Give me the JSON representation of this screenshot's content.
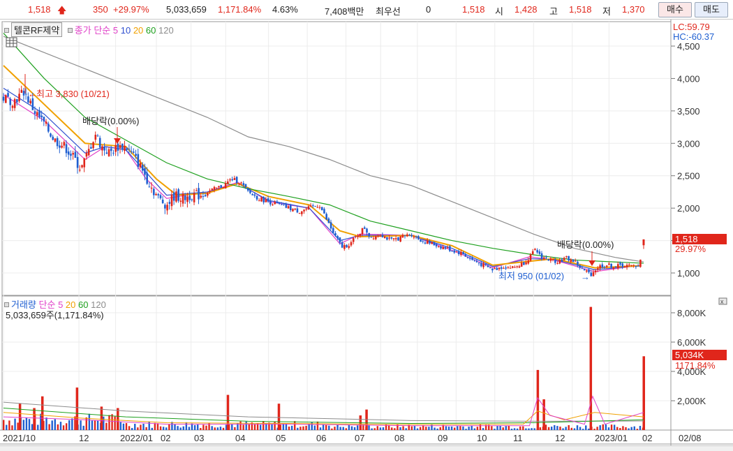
{
  "topbar": {
    "price": "1,518",
    "change": "350",
    "change_pct": "+29.97%",
    "volume": "5,033,659",
    "volume_ratio": "1,171.84%",
    "turnover_pct": "4.63%",
    "amount": "7,408백만",
    "best_bid_label": "최우선",
    "best_bid_value": "0",
    "best_ask_value": "1,518",
    "open_label": "시",
    "open_value": "1,428",
    "high_label": "고",
    "high_value": "1,518",
    "low_label": "저",
    "low_value": "1,370",
    "buy_label": "매수",
    "sell_label": "매도"
  },
  "price_panel": {
    "stock_name": "텔콘RF제약",
    "legend_prefix": "종가 단순",
    "ma_periods": [
      "5",
      "10",
      "20",
      "60",
      "120"
    ],
    "lc_text": "LC:59.79",
    "hc_text": "HC:-60.37",
    "current_price_tag": "1,518",
    "current_pct_tag": "29.97%",
    "high_annotation": "최고 3,830 (10/21)",
    "low_annotation": "최저 950 (01/02)",
    "dividend_label_1": "배당락(0.00%)",
    "dividend_label_2": "배당락(0.00%)"
  },
  "volume_panel": {
    "legend_title": "거래량",
    "legend_prefix": "단순",
    "ma_periods": [
      "5",
      "20",
      "60",
      "120"
    ],
    "current_text": "5,033,659주(1,171.84%)",
    "current_vol_tag": "5,034K",
    "current_ratio_tag": "1171.84%"
  },
  "colors": {
    "up": "#e0261b",
    "down": "#1f5fd1",
    "ma5": "#e040c8",
    "ma10": "#3050d0",
    "ma20": "#f0a000",
    "ma60": "#1ea01e",
    "ma120": "#8c8c8c",
    "tag_bg": "#e0261b"
  },
  "chart_data": {
    "type": "line",
    "title": "텔콘RF제약",
    "x_tick_labels": [
      "2021/10",
      "12",
      "2022/01",
      "02",
      "03",
      "04",
      "05",
      "06",
      "07",
      "08",
      "09",
      "10",
      "11",
      "12",
      "2023/01",
      "02",
      "02/08"
    ],
    "price_axis": {
      "ticks": [
        1000,
        1500,
        2000,
        2500,
        3000,
        3500,
        4000,
        4500
      ],
      "tick_labels": [
        "1,000",
        "1,500",
        "2,000",
        "2,500",
        "3,000",
        "3,500",
        "4,000",
        "4,500"
      ]
    },
    "volume_axis": {
      "ticks": [
        2000,
        4000,
        6000,
        8000
      ],
      "tick_labels": [
        "2,000K",
        "4,000K",
        "6,000K",
        "8,000K"
      ],
      "unit": "K"
    },
    "price_series": [
      {
        "t": 0,
        "close": 3700
      },
      {
        "t": 5,
        "close": 3650
      },
      {
        "t": 10,
        "close": 3800
      },
      {
        "t": 15,
        "close": 3500
      },
      {
        "t": 20,
        "close": 3300
      },
      {
        "t": 25,
        "close": 3050
      },
      {
        "t": 30,
        "close": 2950
      },
      {
        "t": 35,
        "close": 2750
      },
      {
        "t": 38,
        "close": 2600
      },
      {
        "t": 42,
        "close": 2900
      },
      {
        "t": 45,
        "close": 3150
      },
      {
        "t": 48,
        "close": 2950
      },
      {
        "t": 52,
        "close": 2850
      },
      {
        "t": 56,
        "close": 2950
      },
      {
        "t": 60,
        "close": 2950
      },
      {
        "t": 64,
        "close": 2800
      },
      {
        "t": 68,
        "close": 2600
      },
      {
        "t": 72,
        "close": 2350
      },
      {
        "t": 76,
        "close": 2150
      },
      {
        "t": 80,
        "close": 2050
      },
      {
        "t": 84,
        "close": 2200
      },
      {
        "t": 88,
        "close": 2150
      },
      {
        "t": 92,
        "close": 2200
      },
      {
        "t": 96,
        "close": 2200
      },
      {
        "t": 100,
        "close": 2250
      },
      {
        "t": 104,
        "close": 2300
      },
      {
        "t": 108,
        "close": 2350
      },
      {
        "t": 112,
        "close": 2450
      },
      {
        "t": 116,
        "close": 2400
      },
      {
        "t": 120,
        "close": 2250
      },
      {
        "t": 125,
        "close": 2150
      },
      {
        "t": 130,
        "close": 2100
      },
      {
        "t": 135,
        "close": 2050
      },
      {
        "t": 140,
        "close": 2000
      },
      {
        "t": 145,
        "close": 1950
      },
      {
        "t": 150,
        "close": 2000
      },
      {
        "t": 155,
        "close": 2050
      },
      {
        "t": 158,
        "close": 1850
      },
      {
        "t": 162,
        "close": 1600
      },
      {
        "t": 166,
        "close": 1400
      },
      {
        "t": 170,
        "close": 1450
      },
      {
        "t": 174,
        "close": 1600
      },
      {
        "t": 177,
        "close": 1700
      },
      {
        "t": 180,
        "close": 1550
      },
      {
        "t": 185,
        "close": 1600
      },
      {
        "t": 190,
        "close": 1500
      },
      {
        "t": 195,
        "close": 1550
      },
      {
        "t": 200,
        "close": 1600
      },
      {
        "t": 205,
        "close": 1500
      },
      {
        "t": 210,
        "close": 1450
      },
      {
        "t": 215,
        "close": 1400
      },
      {
        "t": 220,
        "close": 1350
      },
      {
        "t": 225,
        "close": 1300
      },
      {
        "t": 230,
        "close": 1200
      },
      {
        "t": 235,
        "close": 1120
      },
      {
        "t": 240,
        "close": 1050
      },
      {
        "t": 245,
        "close": 1100
      },
      {
        "t": 250,
        "close": 1080
      },
      {
        "t": 255,
        "close": 1150
      },
      {
        "t": 258,
        "close": 1250
      },
      {
        "t": 261,
        "close": 1350
      },
      {
        "t": 264,
        "close": 1250
      },
      {
        "t": 268,
        "close": 1200
      },
      {
        "t": 272,
        "close": 1180
      },
      {
        "t": 276,
        "close": 1230
      },
      {
        "t": 280,
        "close": 1180
      },
      {
        "t": 284,
        "close": 1050
      },
      {
        "t": 288,
        "close": 980
      },
      {
        "t": 292,
        "close": 1100
      },
      {
        "t": 296,
        "close": 1120
      },
      {
        "t": 300,
        "close": 1100
      },
      {
        "t": 304,
        "close": 1120
      },
      {
        "t": 308,
        "close": 1100
      },
      {
        "t": 312,
        "close": 1130
      },
      {
        "t": 314,
        "close": 1518
      }
    ],
    "ma_series": [
      {
        "name": "5",
        "points": [
          [
            0,
            3750
          ],
          [
            20,
            3350
          ],
          [
            40,
            2750
          ],
          [
            50,
            2950
          ],
          [
            60,
            2900
          ],
          [
            70,
            2450
          ],
          [
            80,
            2150
          ],
          [
            100,
            2250
          ],
          [
            115,
            2400
          ],
          [
            130,
            2100
          ],
          [
            150,
            2000
          ],
          [
            165,
            1450
          ],
          [
            175,
            1600
          ],
          [
            200,
            1580
          ],
          [
            220,
            1350
          ],
          [
            240,
            1080
          ],
          [
            258,
            1250
          ],
          [
            270,
            1200
          ],
          [
            290,
            1020
          ],
          [
            312,
            1120
          ]
        ]
      },
      {
        "name": "10",
        "points": [
          [
            0,
            3850
          ],
          [
            20,
            3450
          ],
          [
            40,
            2850
          ],
          [
            50,
            2950
          ],
          [
            60,
            2900
          ],
          [
            70,
            2550
          ],
          [
            80,
            2200
          ],
          [
            100,
            2250
          ],
          [
            115,
            2380
          ],
          [
            130,
            2120
          ],
          [
            150,
            2000
          ],
          [
            165,
            1500
          ],
          [
            175,
            1580
          ],
          [
            200,
            1580
          ],
          [
            220,
            1380
          ],
          [
            240,
            1100
          ],
          [
            258,
            1220
          ],
          [
            270,
            1210
          ],
          [
            290,
            1050
          ],
          [
            312,
            1110
          ]
        ]
      },
      {
        "name": "20",
        "points": [
          [
            0,
            4200
          ],
          [
            20,
            3600
          ],
          [
            40,
            3000
          ],
          [
            60,
            2950
          ],
          [
            75,
            2450
          ],
          [
            85,
            2200
          ],
          [
            100,
            2230
          ],
          [
            115,
            2380
          ],
          [
            130,
            2180
          ],
          [
            150,
            2050
          ],
          [
            165,
            1650
          ],
          [
            175,
            1560
          ],
          [
            200,
            1580
          ],
          [
            220,
            1420
          ],
          [
            240,
            1120
          ],
          [
            258,
            1180
          ],
          [
            270,
            1220
          ],
          [
            290,
            1080
          ],
          [
            312,
            1110
          ]
        ]
      },
      {
        "name": "60",
        "points": [
          [
            0,
            4700
          ],
          [
            20,
            4000
          ],
          [
            40,
            3400
          ],
          [
            60,
            3050
          ],
          [
            80,
            2700
          ],
          [
            100,
            2450
          ],
          [
            120,
            2300
          ],
          [
            140,
            2180
          ],
          [
            160,
            2050
          ],
          [
            180,
            1800
          ],
          [
            200,
            1650
          ],
          [
            220,
            1500
          ],
          [
            240,
            1380
          ],
          [
            260,
            1280
          ],
          [
            280,
            1200
          ],
          [
            300,
            1170
          ],
          [
            314,
            1150
          ]
        ]
      },
      {
        "name": "120",
        "points": [
          [
            0,
            4650
          ],
          [
            20,
            4400
          ],
          [
            40,
            4150
          ],
          [
            60,
            3900
          ],
          [
            80,
            3650
          ],
          [
            100,
            3400
          ],
          [
            120,
            3100
          ],
          [
            140,
            2950
          ],
          [
            160,
            2750
          ],
          [
            180,
            2500
          ],
          [
            200,
            2350
          ],
          [
            220,
            2100
          ],
          [
            240,
            1850
          ],
          [
            260,
            1600
          ],
          [
            280,
            1380
          ],
          [
            300,
            1240
          ],
          [
            314,
            1170
          ]
        ]
      }
    ],
    "volume_bars_k": [
      {
        "t": 8,
        "v": 1800
      },
      {
        "t": 15,
        "v": 1500
      },
      {
        "t": 19,
        "v": 2300
      },
      {
        "t": 36,
        "v": 2900
      },
      {
        "t": 48,
        "v": 1600
      },
      {
        "t": 56,
        "v": 1500
      },
      {
        "t": 110,
        "v": 2400
      },
      {
        "t": 135,
        "v": 1800
      },
      {
        "t": 175,
        "v": 1000
      },
      {
        "t": 178,
        "v": 1400
      },
      {
        "t": 262,
        "v": 4100
      },
      {
        "t": 265,
        "v": 2100
      },
      {
        "t": 288,
        "v": 8400
      },
      {
        "t": 314,
        "v": 5034
      }
    ],
    "annotations": [
      {
        "text": "최고 3,830 (10/21)",
        "value": 3830
      },
      {
        "text": "최저 950 (01/02)",
        "value": 950
      }
    ]
  }
}
